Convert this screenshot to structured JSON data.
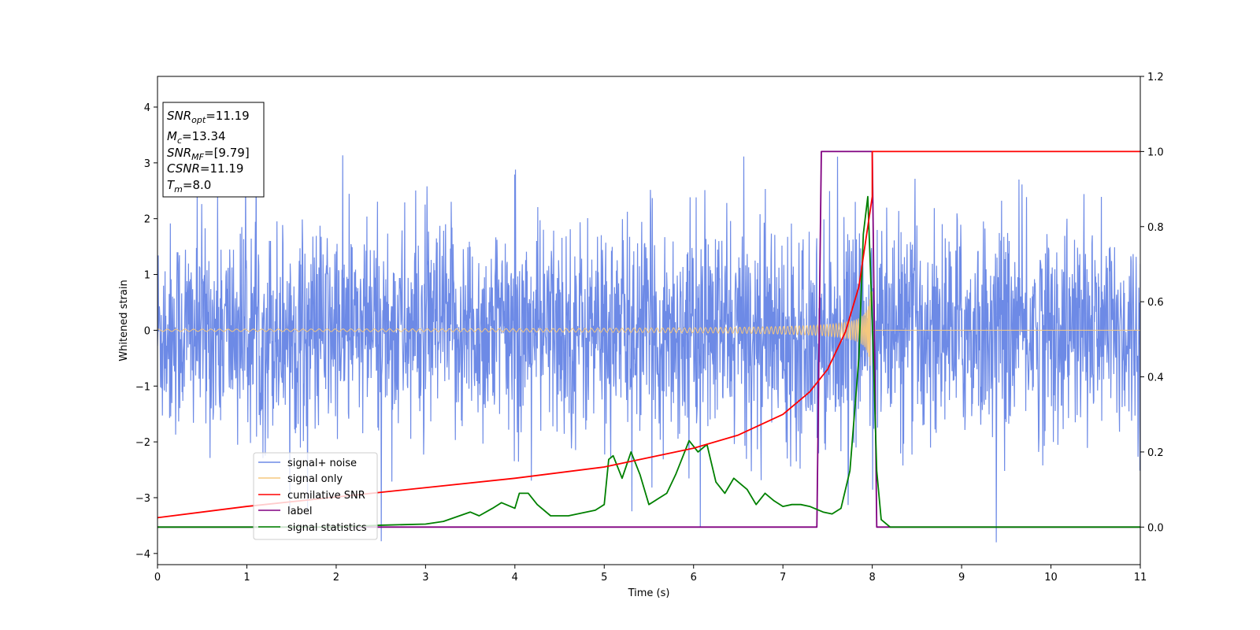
{
  "chart_data": {
    "type": "line",
    "xlabel": "Time (s)",
    "ylabel": "Whitened strain",
    "xlim": [
      0,
      11
    ],
    "ylim_left": [
      -4.2,
      4.55
    ],
    "ylim_right": [
      -0.1,
      1.2
    ],
    "x_ticks": [
      "0",
      "1",
      "2",
      "3",
      "4",
      "5",
      "6",
      "7",
      "8",
      "9",
      "10",
      "11"
    ],
    "y_left_ticks": [
      "4",
      "3",
      "2",
      "1",
      "0",
      "−1",
      "−2",
      "−3",
      "−4"
    ],
    "y_right_ticks": [
      "1.2",
      "1.0",
      "0.8",
      "0.6",
      "0.4",
      "0.2",
      "0.0"
    ],
    "info_box": {
      "snr_opt": "=11.19",
      "mc": "=13.34",
      "snr_mf": "=[9.79]",
      "csnr": "=11.19",
      "tm": "=8.0"
    },
    "legend_position": "lower-left",
    "series": [
      {
        "name": "signal+ noise",
        "color": "#6d8ae6",
        "axis": "left",
        "description": "noise amplitude roughly within ±2.5 with spikes to ±3.9; includes chirp signal",
        "noise_range": [
          -3.8,
          3.95
        ]
      },
      {
        "name": "signal only",
        "color": "#f5c77e",
        "axis": "left",
        "chirp_end": 8.0,
        "amplitude_start": 0.02,
        "amplitude_peak": 0.9
      },
      {
        "name": "cumilative SNR",
        "color": "#ff0000",
        "axis": "right",
        "x": [
          0,
          1,
          2,
          3,
          4,
          5,
          6,
          6.5,
          7,
          7.3,
          7.5,
          7.7,
          7.85,
          7.95,
          8.0,
          8.0,
          11
        ],
        "y": [
          0.025,
          0.055,
          0.08,
          0.105,
          0.13,
          0.16,
          0.21,
          0.245,
          0.3,
          0.36,
          0.42,
          0.52,
          0.64,
          0.8,
          0.88,
          1.0,
          1.0
        ]
      },
      {
        "name": "label",
        "color": "#800080",
        "axis": "right",
        "x": [
          0,
          7.38,
          7.43,
          8.0,
          8.05,
          11
        ],
        "y": [
          0.0,
          0.0,
          1.0,
          1.0,
          0.0,
          0.0
        ]
      },
      {
        "name": "signal statistics",
        "color": "#008000",
        "axis": "right",
        "x": [
          0,
          1,
          2,
          2.5,
          3,
          3.2,
          3.5,
          3.6,
          3.75,
          3.85,
          4.0,
          4.05,
          4.15,
          4.25,
          4.4,
          4.6,
          4.8,
          4.9,
          5.0,
          5.05,
          5.1,
          5.2,
          5.3,
          5.4,
          5.5,
          5.6,
          5.7,
          5.8,
          5.9,
          5.95,
          6.05,
          6.15,
          6.25,
          6.35,
          6.45,
          6.6,
          6.7,
          6.8,
          6.9,
          7.0,
          7.1,
          7.2,
          7.3,
          7.45,
          7.55,
          7.65,
          7.75,
          7.85,
          7.9,
          7.95,
          8.0,
          8.05,
          8.1,
          8.2,
          9,
          10,
          11
        ],
        "y": [
          0.0,
          0.0,
          0.0,
          0.005,
          0.008,
          0.015,
          0.04,
          0.03,
          0.05,
          0.065,
          0.05,
          0.09,
          0.09,
          0.06,
          0.03,
          0.03,
          0.04,
          0.045,
          0.06,
          0.18,
          0.19,
          0.13,
          0.2,
          0.14,
          0.06,
          0.075,
          0.09,
          0.14,
          0.2,
          0.23,
          0.2,
          0.22,
          0.12,
          0.09,
          0.13,
          0.1,
          0.06,
          0.09,
          0.07,
          0.055,
          0.06,
          0.06,
          0.055,
          0.04,
          0.035,
          0.05,
          0.15,
          0.45,
          0.78,
          0.88,
          0.55,
          0.15,
          0.02,
          0.0,
          0.0,
          0.0,
          0.0
        ]
      }
    ]
  }
}
